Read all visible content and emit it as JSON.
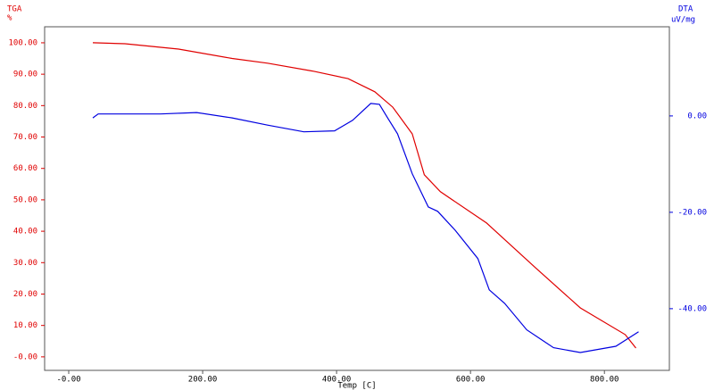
{
  "chart_data": {
    "type": "line",
    "xlabel": "Temp [C]",
    "ylabel": "TGA",
    "ylabel_unit": "%",
    "y2label": "DTA",
    "y2label_unit": "uV/mg",
    "xlim": [
      -36,
      897
    ],
    "ylim": [
      -4.3,
      105.1
    ],
    "y2lim": [
      -52.8,
      18.5
    ],
    "xticks": [
      {
        "value": 0,
        "label": "-0.00"
      },
      {
        "value": 200,
        "label": "200.00"
      },
      {
        "value": 400,
        "label": "400.00"
      },
      {
        "value": 600,
        "label": "600.00"
      },
      {
        "value": 800,
        "label": "800.00"
      }
    ],
    "yticks": [
      {
        "value": 0,
        "label": "-0.00"
      },
      {
        "value": 10,
        "label": "10.00"
      },
      {
        "value": 20,
        "label": "20.00"
      },
      {
        "value": 30,
        "label": "30.00"
      },
      {
        "value": 40,
        "label": "40.00"
      },
      {
        "value": 50,
        "label": "50.00"
      },
      {
        "value": 60,
        "label": "60.00"
      },
      {
        "value": 70,
        "label": "70.00"
      },
      {
        "value": 80,
        "label": "80.00"
      },
      {
        "value": 90,
        "label": "90.00"
      },
      {
        "value": 100,
        "label": "100.00"
      }
    ],
    "y2ticks": [
      {
        "value": 0,
        "label": "0.00"
      },
      {
        "value": -20,
        "label": "-20.00"
      },
      {
        "value": -40,
        "label": "-40.00"
      }
    ],
    "series": [
      {
        "name": "TGA",
        "color": "#e00000",
        "axis": "y",
        "x": [
          36,
          84,
          164,
          244,
          297,
          364,
          417,
          457,
          484,
          513,
          531,
          555,
          624,
          697,
          764,
          831,
          847
        ],
        "values": [
          100,
          99.7,
          98,
          95,
          93.5,
          91,
          88.6,
          84.4,
          79.5,
          71,
          58,
          52.6,
          42.6,
          28.4,
          15.6,
          7.1,
          2.8
        ]
      },
      {
        "name": "DTA",
        "color": "#0000e0",
        "axis": "y2",
        "x": [
          36,
          44,
          137,
          191,
          244,
          297,
          351,
          397,
          424,
          451,
          464,
          477,
          491,
          513,
          537,
          551,
          577,
          611,
          628,
          651,
          684,
          724,
          764,
          817,
          851
        ],
        "values": [
          -0.4,
          0.4,
          0.4,
          0.7,
          -0.4,
          -1.9,
          -3.3,
          -3.1,
          -0.9,
          2.6,
          2.4,
          -0.6,
          -3.7,
          -12,
          -18.9,
          -19.8,
          -23.7,
          -29.6,
          -36.1,
          -38.9,
          -44.4,
          -48.1,
          -49.1,
          -47.8,
          -44.8
        ]
      }
    ]
  }
}
